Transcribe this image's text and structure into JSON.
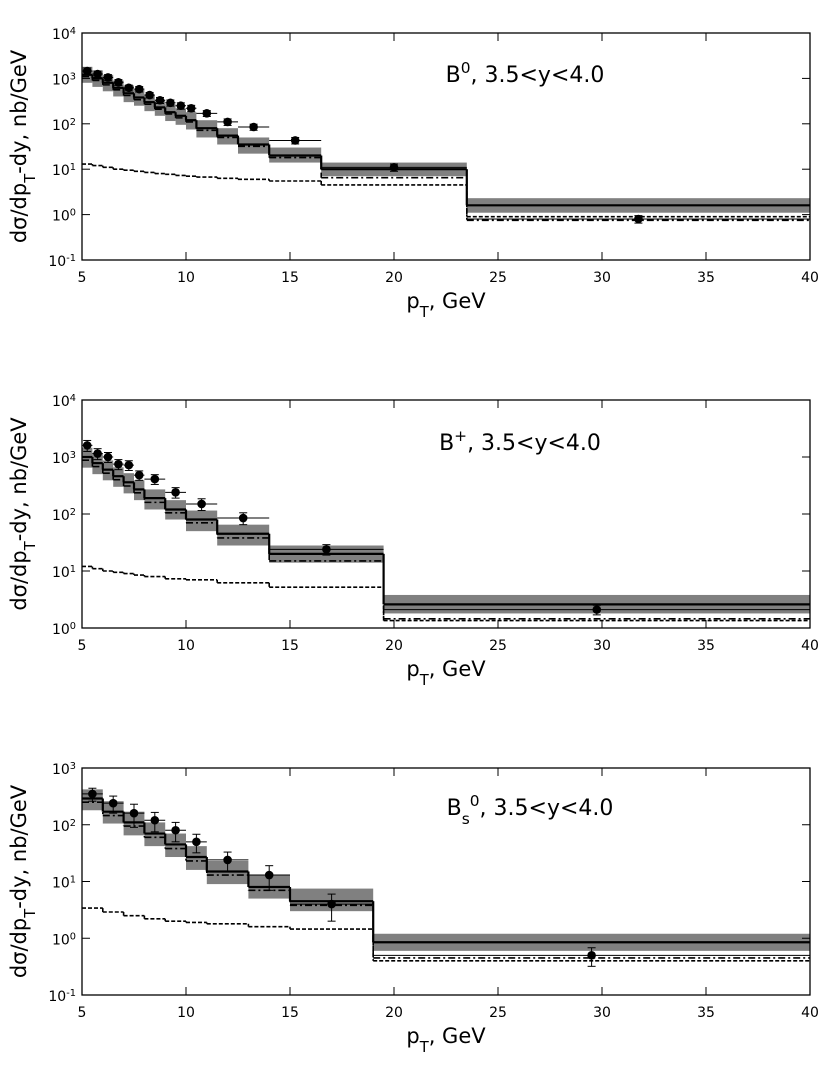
{
  "chart_data": [
    {
      "type": "step",
      "log_y": true,
      "title": [
        {
          "text": "B"
        },
        {
          "text": "0",
          "script": "sup"
        },
        {
          "text": ", 3.5<y<4.0"
        }
      ],
      "xlabel": [
        {
          "text": "p"
        },
        {
          "text": "T",
          "script": "sub"
        },
        {
          "text": ", GeV"
        }
      ],
      "ylabel": [
        {
          "text": "dσ/dp"
        },
        {
          "text": "T",
          "script": "sub"
        },
        {
          "text": "-dy, nb/GeV"
        }
      ],
      "xlim": [
        5,
        40
      ],
      "xticks": [
        5,
        10,
        15,
        20,
        25,
        30,
        35,
        40
      ],
      "ylim": [
        0.1,
        10000
      ],
      "yticks": [
        {
          "value": 0.1,
          "label": [
            "10",
            "-1"
          ]
        },
        {
          "value": 1,
          "label": [
            "10",
            "0"
          ]
        },
        {
          "value": 10,
          "label": [
            "10",
            "1"
          ]
        },
        {
          "value": 100,
          "label": [
            "10",
            "2"
          ]
        },
        {
          "value": 1000,
          "label": [
            "10",
            "3"
          ]
        },
        {
          "value": 10000,
          "label": [
            "10",
            "4"
          ]
        }
      ],
      "bins": [
        5,
        5.5,
        6,
        6.5,
        7,
        7.5,
        8,
        8.5,
        9,
        9.5,
        10,
        10.5,
        11.5,
        12.5,
        14,
        16.5,
        23.5,
        40
      ],
      "band_low": [
        800,
        650,
        520,
        400,
        300,
        250,
        190,
        150,
        115,
        95,
        75,
        50,
        35,
        22,
        14,
        7,
        1.1
      ],
      "band_high": [
        1800,
        1500,
        1200,
        900,
        700,
        560,
        440,
        340,
        270,
        220,
        180,
        120,
        80,
        50,
        30,
        14,
        2.3
      ],
      "central": [
        1200,
        1000,
        800,
        620,
        470,
        380,
        300,
        230,
        180,
        150,
        120,
        80,
        55,
        35,
        20,
        10,
        1.6
      ],
      "dashdot": [
        1100,
        900,
        720,
        560,
        420,
        340,
        270,
        210,
        165,
        135,
        110,
        72,
        50,
        32,
        18,
        6.5,
        0.75
      ],
      "dashed": [
        13,
        12,
        11,
        10,
        9.5,
        9,
        8.5,
        8,
        7.7,
        7.3,
        7,
        6.7,
        6.3,
        6,
        5.5,
        4.5,
        0.9
      ],
      "points": {
        "x": [
          5.25,
          5.75,
          6.25,
          6.75,
          7.25,
          7.75,
          8.25,
          8.75,
          9.25,
          9.75,
          10.25,
          11,
          12,
          13.25,
          15.25,
          20,
          31.75
        ],
        "y": [
          1450,
          1250,
          1050,
          820,
          620,
          580,
          430,
          330,
          290,
          250,
          220,
          170,
          110,
          85,
          43,
          11,
          0.8
        ],
        "yerr": [
          250,
          200,
          160,
          120,
          90,
          80,
          60,
          50,
          45,
          40,
          35,
          25,
          18,
          13,
          7,
          2,
          0.15
        ]
      },
      "band_color": "#808080",
      "line_color": "#000000"
    },
    {
      "type": "step",
      "log_y": true,
      "title": [
        {
          "text": "B"
        },
        {
          "text": "+",
          "script": "sup"
        },
        {
          "text": ", 3.5<y<4.0"
        }
      ],
      "xlabel": [
        {
          "text": "p"
        },
        {
          "text": "T",
          "script": "sub"
        },
        {
          "text": ", GeV"
        }
      ],
      "ylabel": [
        {
          "text": "dσ/dp"
        },
        {
          "text": "T",
          "script": "sub"
        },
        {
          "text": "-dy, nb/GeV"
        }
      ],
      "xlim": [
        5,
        40
      ],
      "xticks": [
        5,
        10,
        15,
        20,
        25,
        30,
        35,
        40
      ],
      "ylim": [
        1,
        10000
      ],
      "yticks": [
        {
          "value": 1,
          "label": [
            "10",
            "0"
          ]
        },
        {
          "value": 10,
          "label": [
            "10",
            "1"
          ]
        },
        {
          "value": 100,
          "label": [
            "10",
            "2"
          ]
        },
        {
          "value": 1000,
          "label": [
            "10",
            "3"
          ]
        },
        {
          "value": 10000,
          "label": [
            "10",
            "4"
          ]
        }
      ],
      "bins": [
        5,
        5.5,
        6,
        6.5,
        7,
        7.5,
        8,
        9,
        10,
        11.5,
        14,
        19.5,
        40
      ],
      "band_low": [
        650,
        500,
        390,
        300,
        230,
        175,
        120,
        80,
        50,
        28,
        14,
        1.8
      ],
      "band_high": [
        1450,
        1130,
        870,
        660,
        520,
        390,
        270,
        175,
        115,
        65,
        28,
        3.8
      ],
      "central": [
        1000,
        780,
        600,
        460,
        360,
        270,
        190,
        120,
        80,
        45,
        20,
        2.6
      ],
      "dashdot": [
        880,
        680,
        520,
        400,
        310,
        235,
        160,
        105,
        70,
        38,
        15,
        1.45
      ],
      "dashed": [
        12,
        11,
        10,
        9.5,
        9,
        8.5,
        8,
        7.3,
        7,
        6.2,
        5.2,
        1.35
      ],
      "points": {
        "x": [
          5.25,
          5.75,
          6.25,
          6.75,
          7.25,
          7.75,
          8.5,
          9.5,
          10.75,
          12.75,
          16.75,
          29.75
        ],
        "y": [
          1600,
          1150,
          1000,
          750,
          720,
          480,
          410,
          240,
          150,
          85,
          24,
          2.1
        ],
        "yerr": [
          350,
          250,
          200,
          150,
          140,
          90,
          80,
          50,
          35,
          20,
          5,
          0.4
        ]
      },
      "band_color": "#808080",
      "line_color": "#000000"
    },
    {
      "type": "step",
      "log_y": true,
      "title": [
        {
          "text": "B"
        },
        {
          "text": "s",
          "script": "sub"
        },
        {
          "text": "0",
          "script": "sup"
        },
        {
          "text": ", 3.5<y<4.0"
        }
      ],
      "xlabel": [
        {
          "text": "p"
        },
        {
          "text": "T",
          "script": "sub"
        },
        {
          "text": ", GeV"
        }
      ],
      "ylabel": [
        {
          "text": "dσ/dp"
        },
        {
          "text": "T",
          "script": "sub"
        },
        {
          "text": "-dy, nb/GeV"
        }
      ],
      "xlim": [
        5,
        40
      ],
      "xticks": [
        5,
        10,
        15,
        20,
        25,
        30,
        35,
        40
      ],
      "ylim": [
        0.1,
        1000
      ],
      "yticks": [
        {
          "value": 0.1,
          "label": [
            "10",
            "-1"
          ]
        },
        {
          "value": 1,
          "label": [
            "10",
            "0"
          ]
        },
        {
          "value": 10,
          "label": [
            "10",
            "1"
          ]
        },
        {
          "value": 100,
          "label": [
            "10",
            "2"
          ]
        },
        {
          "value": 1000,
          "label": [
            "10",
            "3"
          ]
        }
      ],
      "bins": [
        5,
        6,
        7,
        8,
        9,
        10,
        11,
        13,
        15,
        19,
        40
      ],
      "band_low": [
        180,
        105,
        65,
        42,
        27,
        16,
        9,
        5,
        3,
        0.6
      ],
      "band_high": [
        420,
        260,
        170,
        110,
        70,
        42,
        23,
        13,
        7.5,
        1.2
      ],
      "central": [
        290,
        170,
        110,
        70,
        45,
        27,
        15,
        8,
        4.5,
        0.85
      ],
      "dashdot": [
        250,
        145,
        95,
        60,
        38,
        23,
        13,
        7,
        3.8,
        0.45
      ],
      "dashed": [
        3.4,
        2.9,
        2.5,
        2.2,
        2,
        1.9,
        1.8,
        1.6,
        1.45,
        0.4
      ],
      "points": {
        "x": [
          5.5,
          6.5,
          7.5,
          8.5,
          9.5,
          10.5,
          12,
          14,
          17,
          29.5
        ],
        "y": [
          350,
          240,
          160,
          120,
          80,
          50,
          24,
          13,
          4,
          0.5
        ],
        "yerr": [
          90,
          80,
          70,
          45,
          30,
          18,
          9,
          6,
          2,
          0.18
        ]
      },
      "band_color": "#808080",
      "line_color": "#000000"
    }
  ]
}
